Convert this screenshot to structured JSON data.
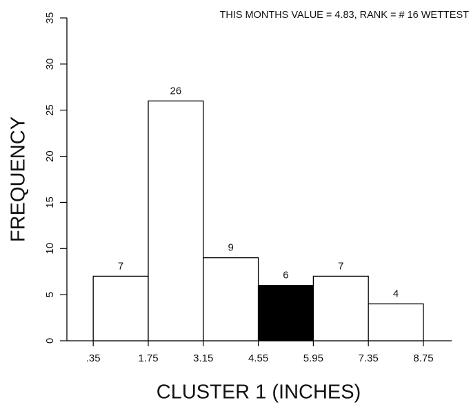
{
  "chart_data": {
    "type": "histogram",
    "title": "THIS MONTHS VALUE =  4.83, RANK = # 16 WETTEST",
    "xlabel": "CLUSTER 1  (INCHES)",
    "ylabel": "FREQUENCY",
    "bins": [
      0.35,
      1.75,
      3.15,
      4.55,
      5.95,
      7.35,
      8.75
    ],
    "counts": [
      7,
      26,
      9,
      6,
      7,
      4
    ],
    "colors": [
      "#ffffff",
      "#ffffff",
      "#ffffff",
      "#000000",
      "#ffffff",
      "#ffffff"
    ],
    "edge_color": "#000000",
    "xlim": [
      -0.32,
      9.47
    ],
    "xticks": [
      {
        "value": 0.35,
        "label": ".35"
      },
      1.75,
      3.15,
      4.55,
      5.95,
      7.35,
      8.75
    ],
    "ylim": [
      0,
      35
    ],
    "yticks": [
      0,
      5,
      10,
      15,
      20,
      25,
      30,
      35
    ],
    "grid": false
  }
}
